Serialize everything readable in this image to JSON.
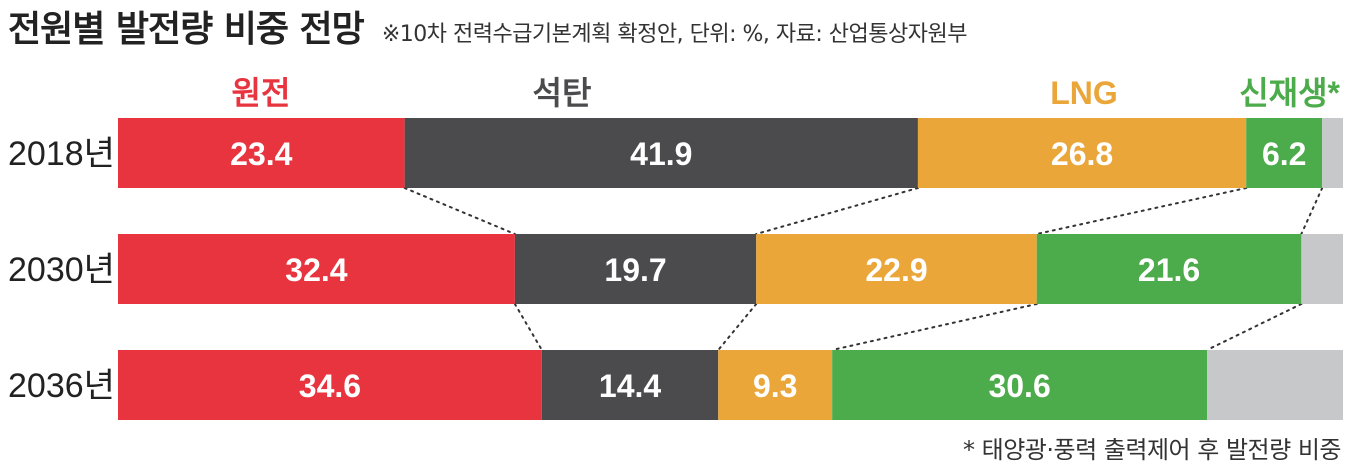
{
  "header": {
    "title": "전원별 발전량 비중 전망",
    "subtitle": "※10차 전력수급기본계획 확정안, 단위: %, 자료: 산업통상자원부"
  },
  "footnote": "* 태양광·풍력 출력제어 후 발전량 비중",
  "chart_data": {
    "type": "bar",
    "orientation": "horizontal",
    "stacked": true,
    "unit": "%",
    "categories": [
      "2018년",
      "2030년",
      "2036년"
    ],
    "series": [
      {
        "name": "원전",
        "color": "#e8343f",
        "values": [
          23.4,
          32.4,
          34.6
        ]
      },
      {
        "name": "석탄",
        "color": "#4b4a4c",
        "values": [
          41.9,
          19.7,
          14.4
        ]
      },
      {
        "name": "LNG",
        "color": "#eba63a",
        "values": [
          26.8,
          22.9,
          9.3
        ]
      },
      {
        "name": "신재생*",
        "color": "#4cab4a",
        "values": [
          6.2,
          21.6,
          30.6
        ]
      },
      {
        "name": "",
        "color": "#c7c8ca",
        "values": [
          1.7,
          3.4,
          11.1
        ]
      }
    ],
    "legend_placement": "top",
    "grid": false
  }
}
